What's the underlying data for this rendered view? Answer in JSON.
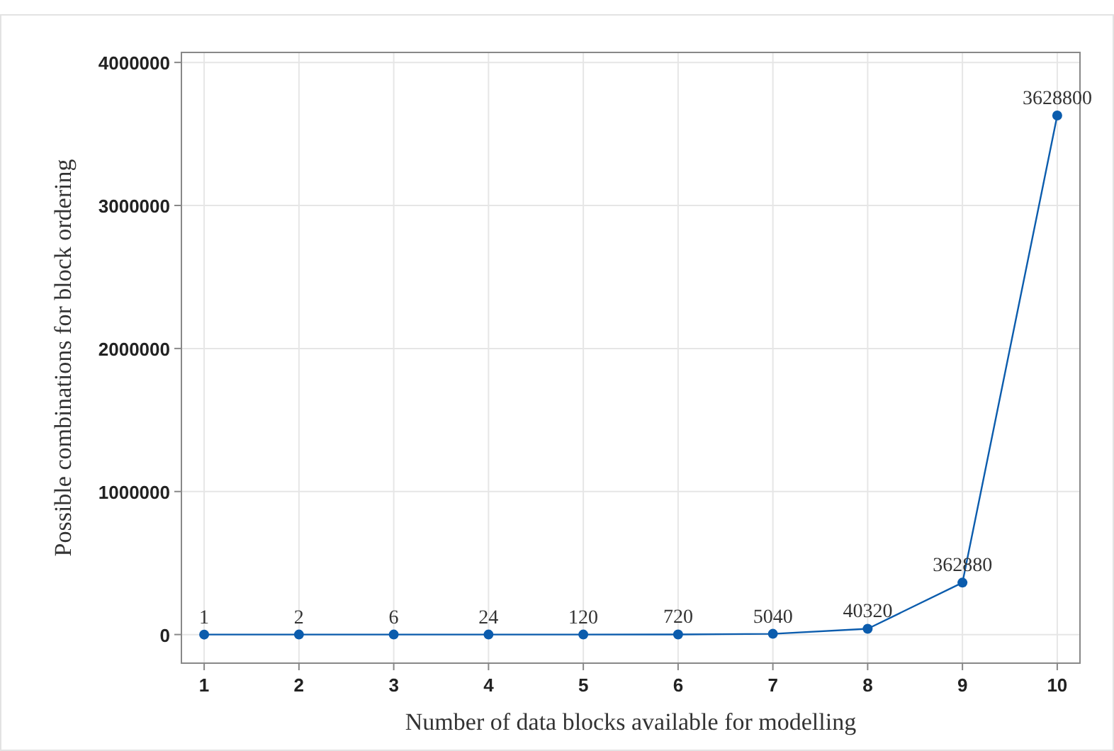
{
  "chart_data": {
    "type": "line",
    "xlabel": "Number of data blocks available for modelling",
    "ylabel": "Possible combinations for block ordering",
    "x": [
      1,
      2,
      3,
      4,
      5,
      6,
      7,
      8,
      9,
      10
    ],
    "series": [
      {
        "color": "#0b5cad",
        "values": [
          1,
          2,
          6,
          24,
          120,
          720,
          5040,
          40320,
          362880,
          3628800
        ]
      }
    ],
    "xlim": [
      0.76,
      10.24
    ],
    "xticks": [
      1,
      2,
      3,
      4,
      5,
      6,
      7,
      8,
      9,
      10
    ],
    "ylim": [
      -200000,
      4070000
    ],
    "yticks": [
      0,
      1000000,
      2000000,
      3000000,
      4000000
    ],
    "grid": true,
    "marker": "circle",
    "line_style": "solid",
    "data_labels": true
  }
}
